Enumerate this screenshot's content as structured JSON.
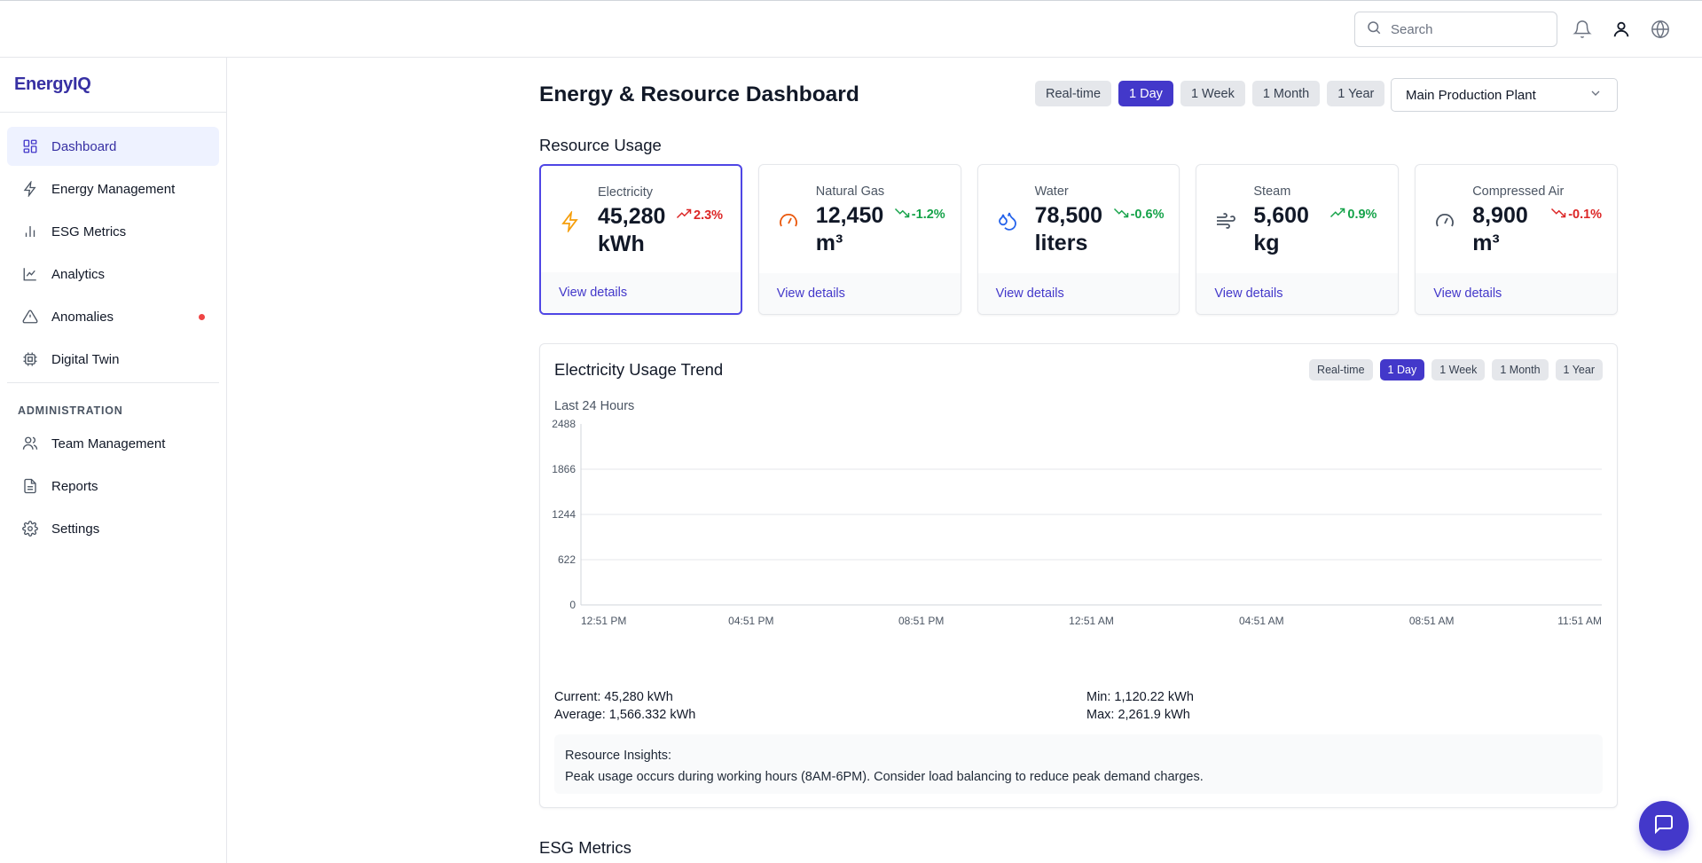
{
  "topbar": {
    "search_placeholder": "Search",
    "icons": [
      "search-icon",
      "bell-icon",
      "user-icon",
      "globe-icon"
    ]
  },
  "sidebar": {
    "brand": "EnergyIQ",
    "items": [
      {
        "label": "Dashboard",
        "icon": "grid-icon",
        "active": true
      },
      {
        "label": "Energy Management",
        "icon": "bolt-icon"
      },
      {
        "label": "ESG Metrics",
        "icon": "bar-chart-icon"
      },
      {
        "label": "Analytics",
        "icon": "line-chart-icon"
      },
      {
        "label": "Anomalies",
        "icon": "alert-triangle-icon",
        "badge": "dot"
      },
      {
        "label": "Digital Twin",
        "icon": "cpu-icon"
      }
    ],
    "admin_section": "ADMINISTRATION",
    "admin_items": [
      {
        "label": "Team Management",
        "icon": "users-icon"
      },
      {
        "label": "Reports",
        "icon": "file-text-icon"
      },
      {
        "label": "Settings",
        "icon": "gear-icon"
      }
    ]
  },
  "header": {
    "title": "Energy & Resource Dashboard",
    "ranges": [
      "Real-time",
      "1 Day",
      "1 Week",
      "1 Month",
      "1 Year"
    ],
    "active_range": "1 Day",
    "plant": "Main Production Plant"
  },
  "resource_usage": {
    "title": "Resource Usage",
    "cards": [
      {
        "name": "Electricity",
        "value": "45,280",
        "unit": "kWh",
        "trend": "2.3%",
        "direction": "up",
        "icon": "bolt-icon",
        "icon_color": "#f59e0b",
        "link": "View details",
        "selected": true
      },
      {
        "name": "Natural Gas",
        "value": "12,450",
        "unit": "m³",
        "trend": "-1.2%",
        "direction": "down",
        "icon": "gauge-icon",
        "icon_color": "#ea580c",
        "link": "View details"
      },
      {
        "name": "Water",
        "value": "78,500",
        "unit": "liters",
        "trend": "-0.6%",
        "direction": "down",
        "icon": "droplets-icon",
        "icon_color": "#2563eb",
        "link": "View details"
      },
      {
        "name": "Steam",
        "value": "5,600",
        "unit": "kg",
        "trend": "0.9%",
        "direction": "up-green",
        "icon": "wind-icon",
        "icon_color": "#4b5563",
        "link": "View details"
      },
      {
        "name": "Compressed Air",
        "value": "8,900",
        "unit": "m³",
        "trend": "-0.1%",
        "direction": "down-red",
        "icon": "gauge-icon",
        "icon_color": "#4b5563",
        "link": "View details"
      }
    ]
  },
  "trend": {
    "title": "Electricity Usage Trend",
    "ranges": [
      "Real-time",
      "1 Day",
      "1 Week",
      "1 Month",
      "1 Year"
    ],
    "active_range": "1 Day",
    "subtitle": "Last 24 Hours",
    "current": "Current: 45,280 kWh",
    "average": "Average: 1,566.332 kWh",
    "min": "Min: 1,120.22 kWh",
    "max": "Max: 2,261.9 kWh",
    "insight_title": "Resource Insights:",
    "insight_text": "Peak usage occurs during working hours (8AM-6PM). Consider load balancing to reduce peak demand charges."
  },
  "chart_data": {
    "type": "line",
    "title": "",
    "xlabel": "",
    "ylabel": "",
    "x_ticks": [
      "12:51 PM",
      "04:51 PM",
      "08:51 PM",
      "12:51 AM",
      "04:51 AM",
      "08:51 AM",
      "11:51 AM"
    ],
    "y_ticks": [
      0,
      622,
      1244,
      1866,
      2488
    ],
    "ylim": [
      0,
      2488
    ],
    "grid": "horizontal",
    "series": []
  },
  "esg": {
    "title": "ESG Metrics"
  },
  "colors": {
    "accent": "#4338ca",
    "brand": "#3730a3",
    "trend_up": "#dc2626",
    "trend_down": "#16a34a"
  }
}
